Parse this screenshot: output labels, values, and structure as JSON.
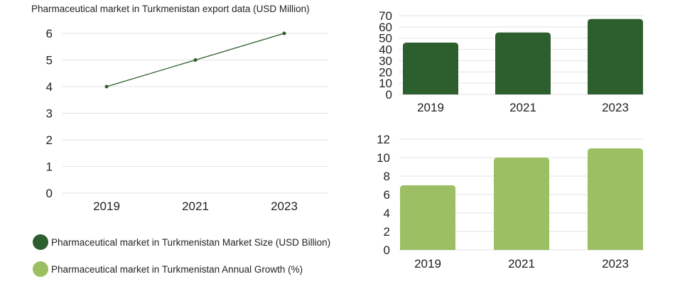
{
  "colors": {
    "dark_green": "#2d5e2e",
    "light_green": "#9bbf62",
    "grid": "#e2e2e2",
    "text": "#222222"
  },
  "chart_data": [
    {
      "id": "export-line",
      "type": "line",
      "title": "Pharmaceutical market in Turkmenistan export data (USD Million)",
      "categories": [
        "2019",
        "2021",
        "2023"
      ],
      "values": [
        4,
        5,
        6
      ],
      "ylim": [
        0,
        6
      ],
      "yticks": [
        "0",
        "1",
        "2",
        "3",
        "4",
        "5",
        "6"
      ],
      "grid": true
    },
    {
      "id": "market-size-bar",
      "type": "bar",
      "series_name": "Pharmaceutical market in Turkmenistan Market Size  (USD Billion)",
      "categories": [
        "2019",
        "2021",
        "2023"
      ],
      "values": [
        46,
        55,
        67
      ],
      "ylim": [
        0,
        70
      ],
      "yticks": [
        "0",
        "10",
        "20",
        "30",
        "40",
        "50",
        "60",
        "70"
      ],
      "grid": true
    },
    {
      "id": "growth-bar",
      "type": "bar",
      "series_name": "Pharmaceutical market in Turkmenistan Annual Growth (%)",
      "categories": [
        "2019",
        "2021",
        "2023"
      ],
      "values": [
        7,
        10,
        11
      ],
      "ylim": [
        0,
        12
      ],
      "yticks": [
        "0",
        "2",
        "4",
        "6",
        "8",
        "10",
        "12"
      ],
      "grid": true
    }
  ],
  "legend": [
    {
      "label": "Pharmaceutical market in Turkmenistan Market Size  (USD Billion)",
      "color": "#2d5e2e"
    },
    {
      "label": "Pharmaceutical market in Turkmenistan Annual Growth (%)",
      "color": "#9bbf62"
    }
  ]
}
